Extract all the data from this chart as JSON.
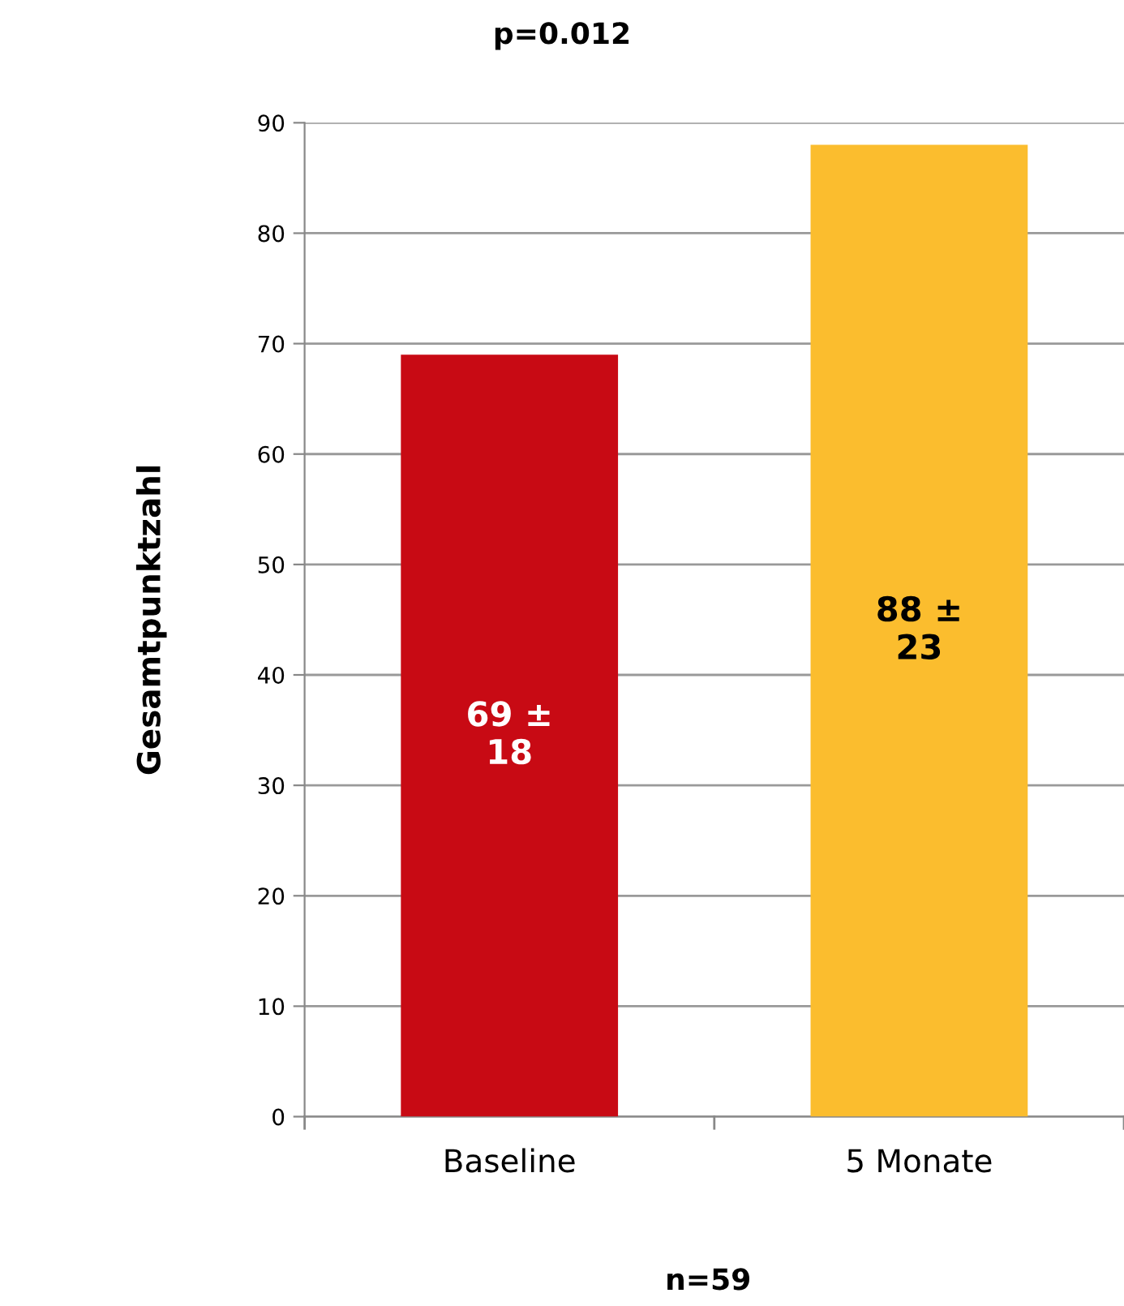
{
  "chart_data": {
    "type": "bar",
    "title": "p=0.012",
    "ylabel": "Gesamtpunktzahl",
    "categories": [
      "Baseline",
      "5 Monate"
    ],
    "values": [
      69,
      88
    ],
    "colors": [
      "#c80a14",
      "#fbbd2e"
    ],
    "value_labels": [
      "69 ±\n18",
      "88 ±\n23"
    ],
    "ylim": [
      0,
      90
    ],
    "yticks": [
      0,
      10,
      20,
      30,
      40,
      50,
      60,
      70,
      80,
      90
    ],
    "grid": "y",
    "legend": false,
    "annotations": [
      "n=59"
    ]
  }
}
